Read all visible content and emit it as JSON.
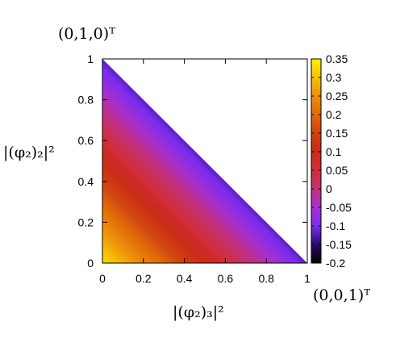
{
  "chart_data": {
    "type": "heatmap",
    "title": "",
    "xlabel": "|(φ₂)₃|²",
    "ylabel": "|(φ₂)₂|²",
    "corner_top_label": "(0,1,0)ᵀ",
    "corner_right_label": "(0,0,1)ᵀ",
    "xlim": [
      0,
      1
    ],
    "ylim": [
      0,
      1
    ],
    "x_ticks": [
      "0",
      "0.2",
      "0.4",
      "0.6",
      "0.8",
      "1"
    ],
    "y_ticks": [
      "0",
      "0.2",
      "0.4",
      "0.6",
      "0.8",
      "1"
    ],
    "colorbar": {
      "min": -0.2,
      "max": 0.35,
      "ticks": [
        "-0.2",
        "-0.15",
        "-0.1",
        "-0.05",
        "0",
        "0.05",
        "0.1",
        "0.15",
        "0.2",
        "0.25",
        "0.3",
        "0.35"
      ],
      "stops": [
        {
          "value": -0.2,
          "color": "#000000"
        },
        {
          "value": -0.15,
          "color": "#2a0a6a"
        },
        {
          "value": -0.1,
          "color": "#7b2df0"
        },
        {
          "value": -0.05,
          "color": "#a530d0"
        },
        {
          "value": 0.0,
          "color": "#c4307a"
        },
        {
          "value": 0.05,
          "color": "#cf2f3c"
        },
        {
          "value": 0.1,
          "color": "#c92a18"
        },
        {
          "value": 0.15,
          "color": "#d04010"
        },
        {
          "value": 0.2,
          "color": "#e06a0a"
        },
        {
          "value": 0.25,
          "color": "#ec8e08"
        },
        {
          "value": 0.3,
          "color": "#f6c008"
        },
        {
          "value": 0.35,
          "color": "#ffef00"
        }
      ]
    },
    "field": {
      "domain": "x + y <= 1",
      "value_at_origin": 0.33,
      "value_at_hypotenuse": -0.12,
      "varies_along": "x + y"
    },
    "grid": false
  }
}
